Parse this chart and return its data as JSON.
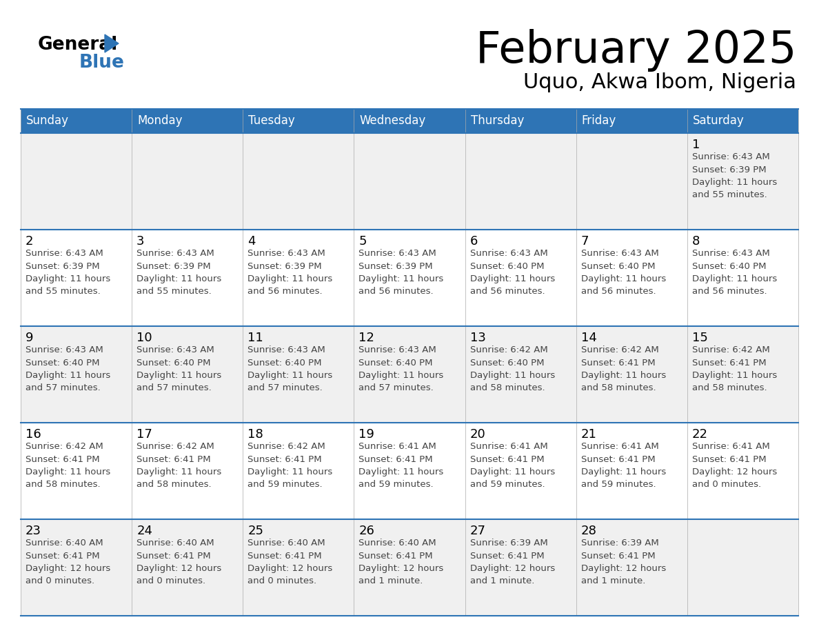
{
  "title": "February 2025",
  "subtitle": "Uquo, Akwa Ibom, Nigeria",
  "header_bg_color": "#2E74B5",
  "header_text_color": "#FFFFFF",
  "cell_bg_white": "#FFFFFF",
  "cell_bg_gray": "#F0F0F0",
  "cell_text_color": "#444444",
  "grid_line_color": "#2E74B5",
  "thin_line_color": "#AAAAAA",
  "days_of_week": [
    "Sunday",
    "Monday",
    "Tuesday",
    "Wednesday",
    "Thursday",
    "Friday",
    "Saturday"
  ],
  "calendar": [
    [
      {
        "day": null,
        "info": ""
      },
      {
        "day": null,
        "info": ""
      },
      {
        "day": null,
        "info": ""
      },
      {
        "day": null,
        "info": ""
      },
      {
        "day": null,
        "info": ""
      },
      {
        "day": null,
        "info": ""
      },
      {
        "day": 1,
        "info": "Sunrise: 6:43 AM\nSunset: 6:39 PM\nDaylight: 11 hours\nand 55 minutes."
      }
    ],
    [
      {
        "day": 2,
        "info": "Sunrise: 6:43 AM\nSunset: 6:39 PM\nDaylight: 11 hours\nand 55 minutes."
      },
      {
        "day": 3,
        "info": "Sunrise: 6:43 AM\nSunset: 6:39 PM\nDaylight: 11 hours\nand 55 minutes."
      },
      {
        "day": 4,
        "info": "Sunrise: 6:43 AM\nSunset: 6:39 PM\nDaylight: 11 hours\nand 56 minutes."
      },
      {
        "day": 5,
        "info": "Sunrise: 6:43 AM\nSunset: 6:39 PM\nDaylight: 11 hours\nand 56 minutes."
      },
      {
        "day": 6,
        "info": "Sunrise: 6:43 AM\nSunset: 6:40 PM\nDaylight: 11 hours\nand 56 minutes."
      },
      {
        "day": 7,
        "info": "Sunrise: 6:43 AM\nSunset: 6:40 PM\nDaylight: 11 hours\nand 56 minutes."
      },
      {
        "day": 8,
        "info": "Sunrise: 6:43 AM\nSunset: 6:40 PM\nDaylight: 11 hours\nand 56 minutes."
      }
    ],
    [
      {
        "day": 9,
        "info": "Sunrise: 6:43 AM\nSunset: 6:40 PM\nDaylight: 11 hours\nand 57 minutes."
      },
      {
        "day": 10,
        "info": "Sunrise: 6:43 AM\nSunset: 6:40 PM\nDaylight: 11 hours\nand 57 minutes."
      },
      {
        "day": 11,
        "info": "Sunrise: 6:43 AM\nSunset: 6:40 PM\nDaylight: 11 hours\nand 57 minutes."
      },
      {
        "day": 12,
        "info": "Sunrise: 6:43 AM\nSunset: 6:40 PM\nDaylight: 11 hours\nand 57 minutes."
      },
      {
        "day": 13,
        "info": "Sunrise: 6:42 AM\nSunset: 6:40 PM\nDaylight: 11 hours\nand 58 minutes."
      },
      {
        "day": 14,
        "info": "Sunrise: 6:42 AM\nSunset: 6:41 PM\nDaylight: 11 hours\nand 58 minutes."
      },
      {
        "day": 15,
        "info": "Sunrise: 6:42 AM\nSunset: 6:41 PM\nDaylight: 11 hours\nand 58 minutes."
      }
    ],
    [
      {
        "day": 16,
        "info": "Sunrise: 6:42 AM\nSunset: 6:41 PM\nDaylight: 11 hours\nand 58 minutes."
      },
      {
        "day": 17,
        "info": "Sunrise: 6:42 AM\nSunset: 6:41 PM\nDaylight: 11 hours\nand 58 minutes."
      },
      {
        "day": 18,
        "info": "Sunrise: 6:42 AM\nSunset: 6:41 PM\nDaylight: 11 hours\nand 59 minutes."
      },
      {
        "day": 19,
        "info": "Sunrise: 6:41 AM\nSunset: 6:41 PM\nDaylight: 11 hours\nand 59 minutes."
      },
      {
        "day": 20,
        "info": "Sunrise: 6:41 AM\nSunset: 6:41 PM\nDaylight: 11 hours\nand 59 minutes."
      },
      {
        "day": 21,
        "info": "Sunrise: 6:41 AM\nSunset: 6:41 PM\nDaylight: 11 hours\nand 59 minutes."
      },
      {
        "day": 22,
        "info": "Sunrise: 6:41 AM\nSunset: 6:41 PM\nDaylight: 12 hours\nand 0 minutes."
      }
    ],
    [
      {
        "day": 23,
        "info": "Sunrise: 6:40 AM\nSunset: 6:41 PM\nDaylight: 12 hours\nand 0 minutes."
      },
      {
        "day": 24,
        "info": "Sunrise: 6:40 AM\nSunset: 6:41 PM\nDaylight: 12 hours\nand 0 minutes."
      },
      {
        "day": 25,
        "info": "Sunrise: 6:40 AM\nSunset: 6:41 PM\nDaylight: 12 hours\nand 0 minutes."
      },
      {
        "day": 26,
        "info": "Sunrise: 6:40 AM\nSunset: 6:41 PM\nDaylight: 12 hours\nand 1 minute."
      },
      {
        "day": 27,
        "info": "Sunrise: 6:39 AM\nSunset: 6:41 PM\nDaylight: 12 hours\nand 1 minute."
      },
      {
        "day": 28,
        "info": "Sunrise: 6:39 AM\nSunset: 6:41 PM\nDaylight: 12 hours\nand 1 minute."
      },
      {
        "day": null,
        "info": ""
      }
    ]
  ],
  "logo_general_color": "#000000",
  "logo_blue_color": "#2E74B5",
  "logo_triangle_color": "#2E74B5"
}
